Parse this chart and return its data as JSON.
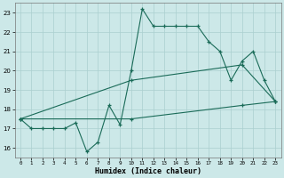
{
  "xlabel": "Humidex (Indice chaleur)",
  "xlim": [
    -0.5,
    23.5
  ],
  "ylim": [
    15.5,
    23.5
  ],
  "yticks": [
    16,
    17,
    18,
    19,
    20,
    21,
    22,
    23
  ],
  "xticks": [
    0,
    1,
    2,
    3,
    4,
    5,
    6,
    7,
    8,
    9,
    10,
    11,
    12,
    13,
    14,
    15,
    16,
    17,
    18,
    19,
    20,
    21,
    22,
    23
  ],
  "line_color": "#1a6b58",
  "bg_color": "#cce8e8",
  "grid_color": "#aacfcf",
  "series1_x": [
    0,
    1,
    2,
    3,
    4,
    5,
    6,
    7,
    8,
    9,
    10,
    11,
    12,
    13,
    14,
    15,
    16,
    17,
    18,
    19,
    20,
    21,
    22,
    23
  ],
  "series1_y": [
    17.5,
    17.0,
    17.0,
    17.0,
    17.0,
    17.3,
    15.8,
    16.3,
    18.2,
    17.2,
    20.0,
    23.2,
    22.3,
    22.3,
    22.3,
    22.3,
    22.3,
    21.5,
    21.0,
    19.5,
    20.5,
    21.0,
    19.5,
    18.4
  ],
  "series2_x": [
    0,
    10,
    20,
    23
  ],
  "series2_y": [
    17.5,
    19.5,
    20.3,
    18.4
  ],
  "series3_x": [
    0,
    10,
    20,
    23
  ],
  "series3_y": [
    17.5,
    17.5,
    18.2,
    18.4
  ]
}
